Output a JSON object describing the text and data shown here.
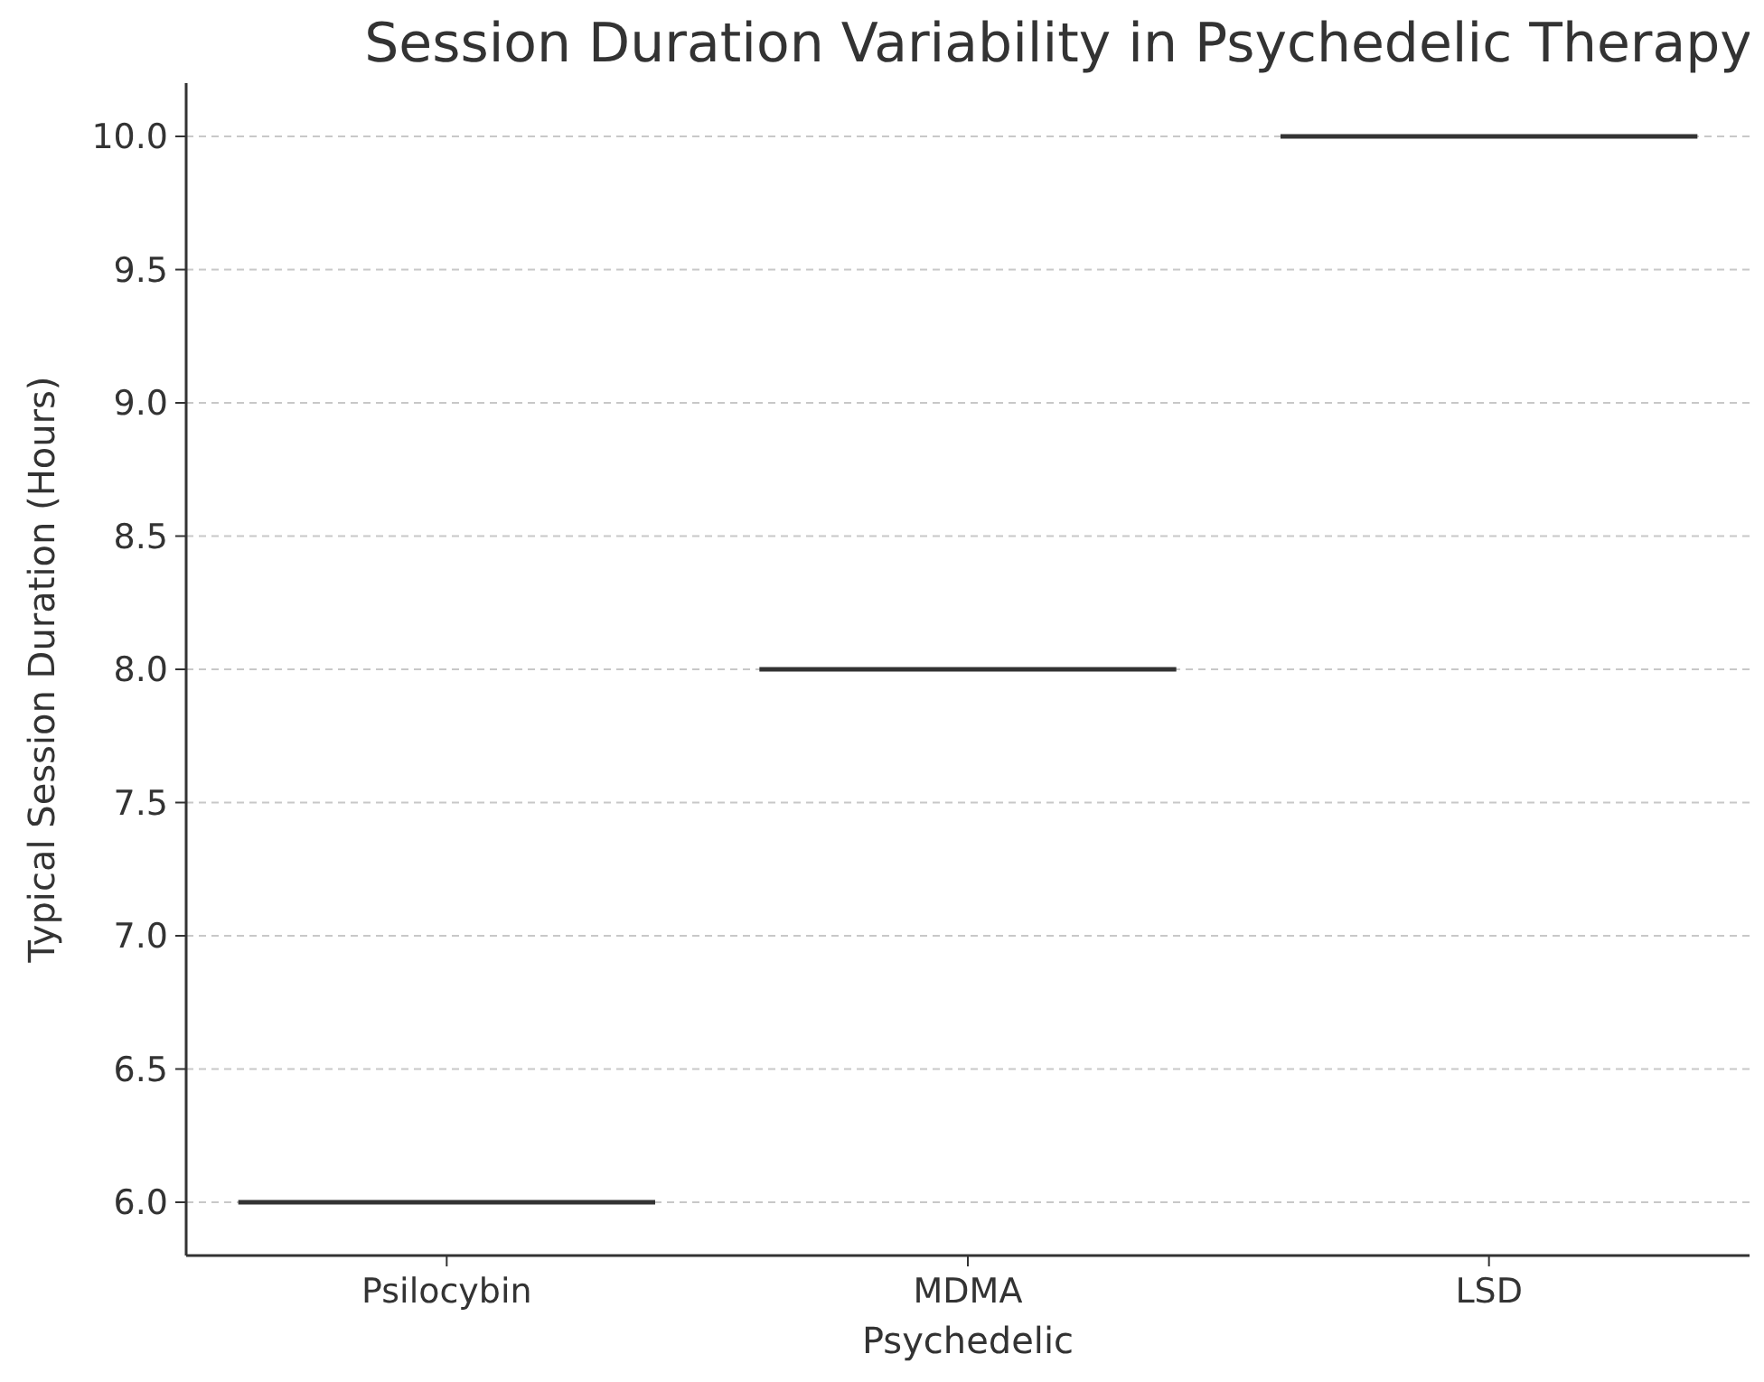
{
  "chart_data": {
    "type": "box",
    "title": "Session Duration Variability in Psychedelic Therapy",
    "xlabel": "Psychedelic",
    "ylabel": "Typical Session Duration (Hours)",
    "categories": [
      "Psilocybin",
      "MDMA",
      "LSD"
    ],
    "boxes": [
      {
        "low": 6,
        "q1": 6,
        "median": 6,
        "q3": 6,
        "high": 6
      },
      {
        "low": 8,
        "q1": 8,
        "median": 8,
        "q3": 8,
        "high": 8
      },
      {
        "low": 10,
        "q1": 10,
        "median": 10,
        "q3": 10,
        "high": 10
      }
    ],
    "ylim": [
      5.8,
      10.2
    ],
    "yticks": [
      {
        "value": 6,
        "label": "6.0"
      },
      {
        "value": 6.5,
        "label": "6.5"
      },
      {
        "value": 7,
        "label": "7.0"
      },
      {
        "value": 7.5,
        "label": "7.5"
      },
      {
        "value": 8,
        "label": "8.0"
      },
      {
        "value": 8.5,
        "label": "8.5"
      },
      {
        "value": 9,
        "label": "9.0"
      },
      {
        "value": 9.5,
        "label": "9.5"
      },
      {
        "value": 10,
        "label": "10.0"
      }
    ],
    "grid": "y"
  }
}
